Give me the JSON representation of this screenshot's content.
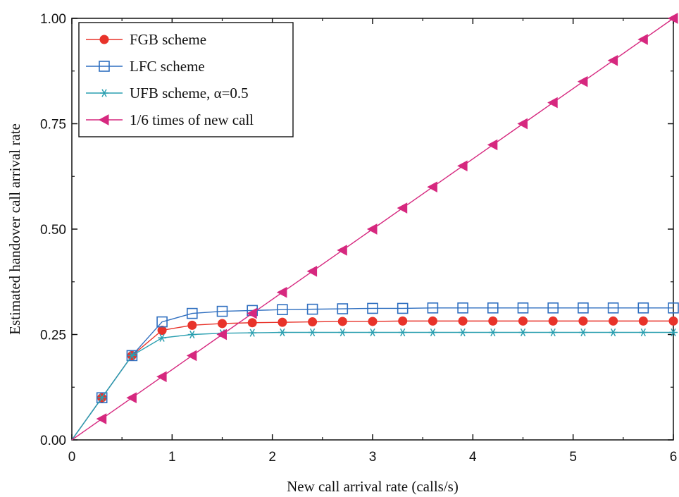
{
  "chart_data": {
    "type": "line",
    "title": "",
    "xlabel": "New call arrival rate (calls/s)",
    "ylabel": "Estimated handover call arrival rate",
    "xlim": [
      0,
      6
    ],
    "ylim": [
      0,
      1.0
    ],
    "x_ticks": [
      "0",
      "1",
      "2",
      "3",
      "4",
      "5",
      "6"
    ],
    "y_ticks": [
      "0.00",
      "0.25",
      "0.50",
      "0.75",
      "1.00"
    ],
    "grid": false,
    "legend_position": "top-left",
    "x": [
      0,
      0.3,
      0.6,
      0.9,
      1.2,
      1.5,
      1.8,
      2.1,
      2.4,
      2.7,
      3.0,
      3.3,
      3.6,
      3.9,
      4.2,
      4.5,
      4.8,
      5.1,
      5.4,
      5.7,
      6.0
    ],
    "series": [
      {
        "name": "FGB scheme",
        "color": "#e8332a",
        "marker": "filled-circle",
        "values": [
          0,
          0.1,
          0.2,
          0.26,
          0.272,
          0.276,
          0.278,
          0.279,
          0.28,
          0.281,
          0.281,
          0.282,
          0.282,
          0.282,
          0.282,
          0.282,
          0.282,
          0.282,
          0.282,
          0.282,
          0.282
        ]
      },
      {
        "name": "LFC scheme",
        "color": "#2f6fc0",
        "marker": "open-square",
        "values": [
          0,
          0.1,
          0.2,
          0.28,
          0.3,
          0.305,
          0.307,
          0.309,
          0.31,
          0.311,
          0.312,
          0.312,
          0.313,
          0.313,
          0.313,
          0.313,
          0.313,
          0.313,
          0.313,
          0.313,
          0.313
        ]
      },
      {
        "name": "UFB scheme, α=0.5",
        "color": "#2a9fb0",
        "marker": "asterisk",
        "values": [
          0,
          0.1,
          0.2,
          0.242,
          0.25,
          0.253,
          0.254,
          0.255,
          0.255,
          0.255,
          0.255,
          0.255,
          0.255,
          0.255,
          0.255,
          0.255,
          0.255,
          0.255,
          0.255,
          0.255,
          0.255
        ]
      },
      {
        "name": "1/6 times of new call",
        "color": "#d6287f",
        "marker": "left-triangle",
        "values": [
          0,
          0.05,
          0.1,
          0.15,
          0.2,
          0.25,
          0.3,
          0.35,
          0.4,
          0.45,
          0.5,
          0.55,
          0.6,
          0.65,
          0.7,
          0.75,
          0.8,
          0.85,
          0.9,
          0.95,
          1.0
        ]
      }
    ]
  }
}
